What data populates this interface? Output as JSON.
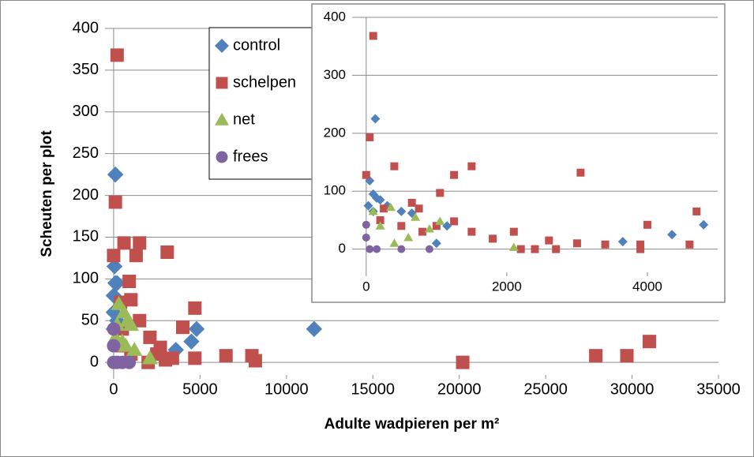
{
  "chart_data": [
    {
      "type": "scatter",
      "xlabel": "Adulte wadpieren per m²",
      "ylabel": "Scheuten per plot",
      "xlim": [
        -500,
        35000
      ],
      "ylim": [
        -15,
        400
      ],
      "xticks": [
        0,
        5000,
        10000,
        15000,
        20000,
        25000,
        30000,
        35000
      ],
      "yticks": [
        0,
        50,
        100,
        150,
        200,
        250,
        300,
        350,
        400
      ],
      "grid": true,
      "legend": "top-left",
      "series": [
        {
          "name": "control",
          "color": "#4f81bd",
          "marker": "diamond",
          "x": [
            100,
            50,
            100,
            0,
            0,
            200,
            4800,
            4500,
            11600,
            0,
            3600,
            200
          ],
          "values": [
            225,
            115,
            95,
            80,
            60,
            95,
            40,
            25,
            40,
            40,
            15,
            50
          ]
        },
        {
          "name": "schelpen",
          "color": "#c0504d",
          "marker": "square",
          "x": [
            200,
            100,
            0,
            600,
            1500,
            1300,
            3100,
            4700,
            4000,
            900,
            400,
            1000,
            1500,
            2100,
            2700,
            3400,
            4700,
            6500,
            8000,
            8200,
            20200,
            27900,
            29700,
            31000,
            2000,
            2500,
            3000,
            500,
            300,
            1000
          ],
          "values": [
            368,
            192,
            128,
            143,
            143,
            128,
            132,
            65,
            42,
            97,
            72,
            75,
            50,
            30,
            18,
            5,
            5,
            8,
            8,
            2,
            0,
            8,
            8,
            25,
            0,
            10,
            3,
            40,
            20,
            10
          ]
        },
        {
          "name": "net",
          "color": "#9bbb59",
          "marker": "triangle",
          "x": [
            300,
            600,
            800,
            1000,
            2100,
            500,
            200,
            100,
            700,
            1200
          ],
          "values": [
            70,
            60,
            50,
            45,
            5,
            25,
            45,
            30,
            20,
            15
          ]
        },
        {
          "name": "frees",
          "color": "#8064a2",
          "marker": "circle",
          "x": [
            0,
            0,
            0,
            200,
            500,
            900
          ],
          "values": [
            40,
            20,
            0,
            0,
            0,
            0
          ]
        }
      ]
    },
    {
      "type": "scatter",
      "xlim": [
        -200,
        5000
      ],
      "ylim": [
        -40,
        400
      ],
      "xticks": [
        0,
        2000,
        4000
      ],
      "yticks": [
        0,
        100,
        200,
        300,
        400
      ],
      "grid": true,
      "series": [
        {
          "color": "#4f81bd",
          "marker": "diamond",
          "x": [
            130,
            50,
            100,
            150,
            200,
            30,
            100,
            300,
            500,
            650,
            1150,
            3650,
            4350,
            4800,
            1000
          ],
          "values": [
            225,
            118,
            95,
            88,
            85,
            75,
            65,
            75,
            65,
            62,
            40,
            13,
            25,
            42,
            10
          ]
        },
        {
          "color": "#c0504d",
          "marker": "square",
          "x": [
            100,
            50,
            0,
            400,
            1050,
            1500,
            1250,
            3050,
            4700,
            4000,
            650,
            750,
            250,
            1250,
            1500,
            2100,
            1800,
            2600,
            3000,
            3400,
            3900,
            4600,
            2700,
            3900,
            2200,
            2400,
            1000,
            800,
            500,
            200
          ],
          "values": [
            368,
            193,
            128,
            143,
            97,
            143,
            128,
            132,
            65,
            42,
            80,
            70,
            70,
            48,
            30,
            30,
            18,
            15,
            10,
            8,
            8,
            8,
            0,
            0,
            0,
            0,
            40,
            30,
            40,
            50
          ]
        },
        {
          "color": "#9bbb59",
          "marker": "triangle",
          "x": [
            100,
            350,
            700,
            900,
            1050,
            600,
            2100,
            200,
            400
          ],
          "values": [
            65,
            72,
            55,
            35,
            48,
            20,
            3,
            40,
            10
          ]
        },
        {
          "color": "#8064a2",
          "marker": "circle",
          "x": [
            0,
            0,
            50,
            150,
            500,
            900
          ],
          "values": [
            42,
            20,
            0,
            0,
            0,
            0
          ]
        }
      ]
    }
  ]
}
